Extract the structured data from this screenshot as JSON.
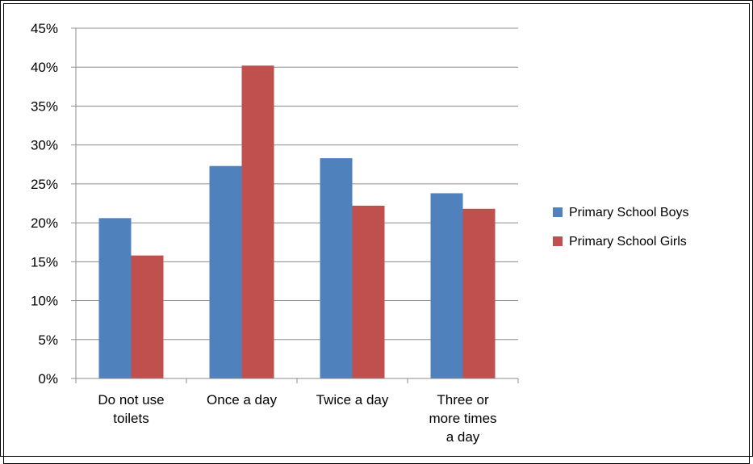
{
  "chart_data": {
    "type": "bar",
    "categories": [
      [
        "Do not use",
        "toilets"
      ],
      [
        "Once a day"
      ],
      [
        "Twice a day"
      ],
      [
        "Three or",
        "more times",
        "a day"
      ]
    ],
    "series": [
      {
        "name": "Primary School Boys",
        "color": "#4f81bd",
        "values": [
          20.6,
          27.3,
          28.3,
          23.8
        ]
      },
      {
        "name": "Primary School Girls",
        "color": "#c0504d",
        "values": [
          15.8,
          40.2,
          22.2,
          21.8
        ]
      }
    ],
    "y_ticks": [
      "0%",
      "5%",
      "10%",
      "15%",
      "20%",
      "25%",
      "30%",
      "35%",
      "40%",
      "45%"
    ],
    "ylim": [
      0,
      45
    ],
    "unit": "%",
    "grid": true,
    "legend_position": "right"
  }
}
